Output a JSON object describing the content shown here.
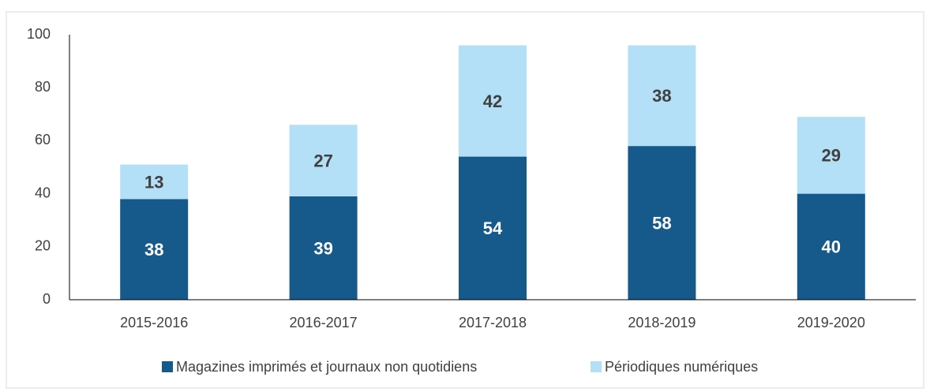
{
  "chart_data": {
    "type": "stacked_bar",
    "categories": [
      "2015-2016",
      "2016-2017",
      "2017-2018",
      "2018-2019",
      "2019-2020"
    ],
    "series": [
      {
        "name": "Magazines imprimés et journaux non quotidiens",
        "color": "#155a8a",
        "values": [
          38,
          39,
          54,
          58,
          40
        ]
      },
      {
        "name": "Périodiques numériques",
        "color": "#b3e0f7",
        "values": [
          13,
          27,
          42,
          38,
          29
        ]
      }
    ],
    "ylim": [
      0,
      100
    ],
    "yticks": [
      0,
      20,
      40,
      60,
      80,
      100
    ],
    "grid": false,
    "legend": "bottom"
  }
}
